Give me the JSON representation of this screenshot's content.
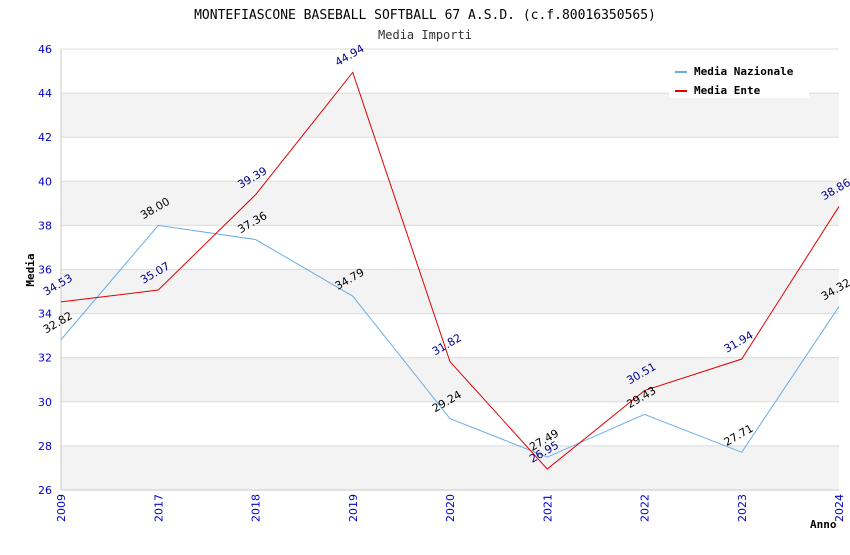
{
  "chart_data": {
    "type": "line",
    "title": "MONTEFIASCONE BASEBALL SOFTBALL 67 A.S.D. (c.f.80016350565)",
    "subtitle": "Media Importi",
    "xlabel": "Anno",
    "ylabel": "Media",
    "categories": [
      "2009",
      "2017",
      "2018",
      "2019",
      "2020",
      "2021",
      "2022",
      "2023",
      "2024"
    ],
    "ylim": [
      26,
      46
    ],
    "yticks": [
      26,
      28,
      30,
      32,
      34,
      36,
      38,
      40,
      42,
      44,
      46
    ],
    "grid": true,
    "legend_position": "top-right",
    "series": [
      {
        "name": "Media Nazionale",
        "color": "#6aaee8",
        "label_color": "#000000",
        "values": [
          32.82,
          38.0,
          37.36,
          34.79,
          29.24,
          27.49,
          29.43,
          27.71,
          34.32
        ],
        "labels": [
          "32.82",
          "38.00",
          "37.36",
          "34.79",
          "29.24",
          "27.49",
          "29.43",
          "27.71",
          "34.32"
        ]
      },
      {
        "name": "Media Ente",
        "color": "#e00000",
        "label_color": "#00008b",
        "values": [
          34.53,
          35.07,
          39.39,
          44.94,
          31.82,
          26.95,
          30.51,
          31.94,
          38.86
        ],
        "labels": [
          "34.53",
          "35.07",
          "39.39",
          "44.94",
          "31.82",
          "26.95",
          "30.51",
          "31.94",
          "38.86"
        ]
      }
    ]
  }
}
